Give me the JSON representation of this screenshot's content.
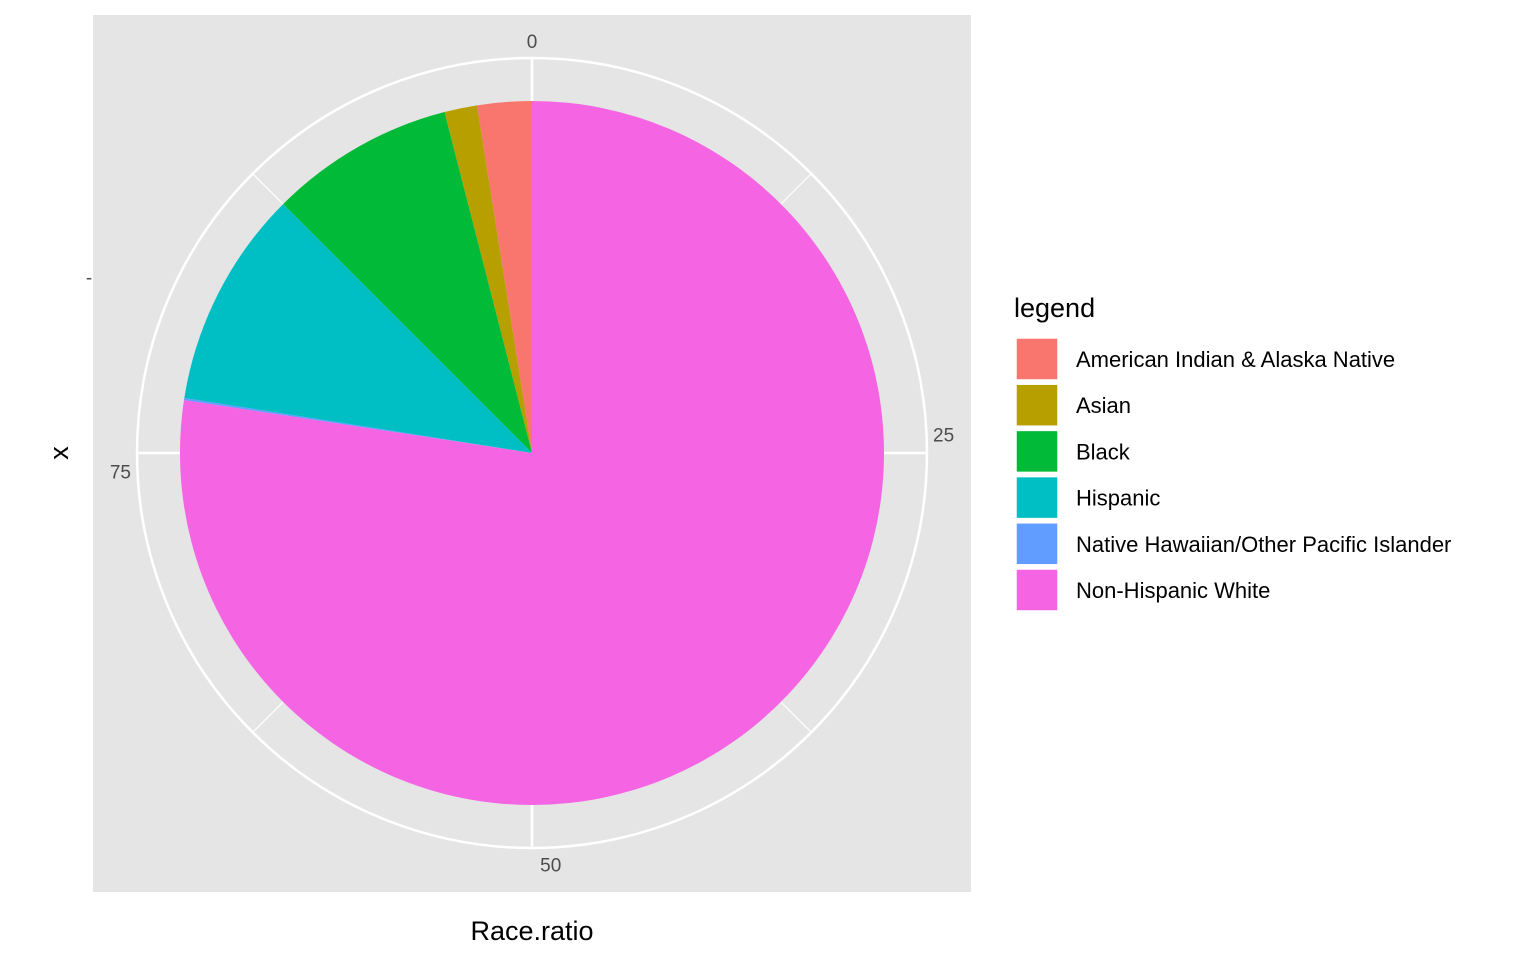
{
  "chart_data": {
    "type": "pie",
    "xlabel": "Race.ratio",
    "ylabel": "x",
    "y_tick": "-",
    "angle_ticks": [
      "0",
      "25",
      "50",
      "75"
    ],
    "angle_range": [
      0,
      100
    ],
    "grid": true,
    "legend_title": "legend",
    "legend_position": "right",
    "categories": [
      "American Indian & Alaska Native",
      "Asian",
      "Black",
      "Hispanic",
      "Native Hawaiian/Other Pacific Islander",
      "Non-Hispanic White"
    ],
    "values": [
      2.5,
      1.5,
      8.5,
      10.0,
      0.1,
      77.4
    ],
    "colors": [
      "#F8766D",
      "#B79F00",
      "#00BA38",
      "#00BFC4",
      "#619CFF",
      "#F564E3"
    ]
  }
}
